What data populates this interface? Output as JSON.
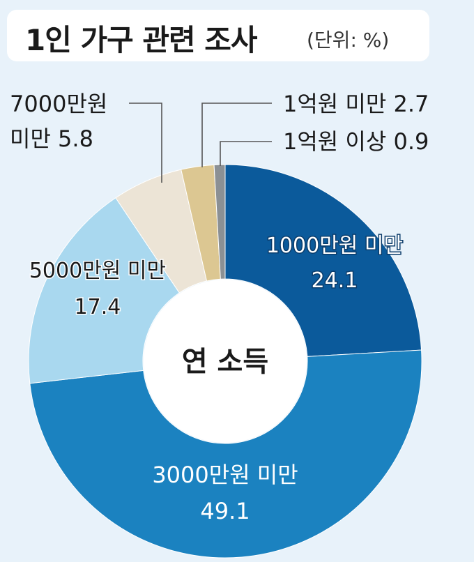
{
  "title": {
    "main": "1인 가구 관련 조사",
    "unit": "(단위: %)"
  },
  "chart_data": {
    "type": "pie",
    "center_label": "연 소득",
    "unit": "%",
    "slices": [
      {
        "label": "1000만원 미만",
        "value": 24.1,
        "color": "#0b5a9b",
        "text_color": "#ffffff"
      },
      {
        "label": "3000만원 미만",
        "value": 49.1,
        "color": "#1b82c0",
        "text_color": "#ffffff"
      },
      {
        "label": "5000만원 미만",
        "value": 17.4,
        "color": "#a9d8ef",
        "text_color": "#1a1a1a"
      },
      {
        "label": "7000만원 미만",
        "value": 5.8,
        "color": "#ece4d6",
        "text_color": "#1a1a1a"
      },
      {
        "label": "1억원 미만",
        "value": 2.7,
        "color": "#dcc792",
        "text_color": "#1a1a1a"
      },
      {
        "label": "1억원 이상",
        "value": 0.9,
        "color": "#8b9094",
        "text_color": "#1a1a1a"
      }
    ]
  }
}
